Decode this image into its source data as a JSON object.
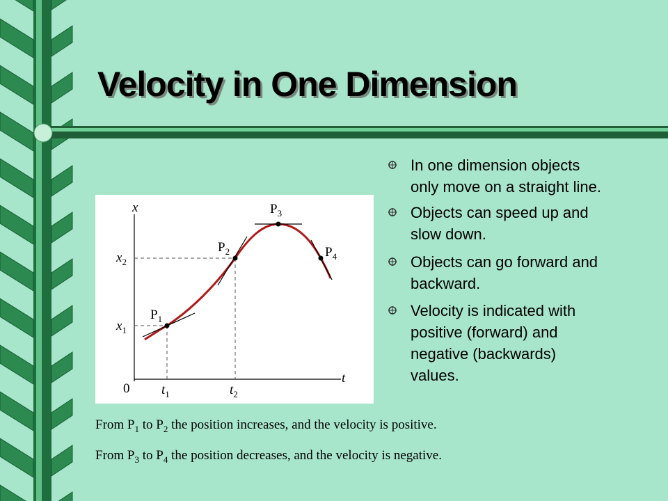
{
  "title": "Velocity in One Dimension",
  "bullets": [
    [
      "In one dimension objects",
      "only move on a straight line."
    ],
    [
      "Objects can speed up and",
      "slow down."
    ],
    [
      "Objects can go forward and",
      "backward."
    ],
    [
      "Velocity is indicated with",
      "positive (forward) and",
      "negative (backwards)",
      "values."
    ]
  ],
  "figure": {
    "x_axis": "t",
    "y_axis": "x",
    "origin": "0",
    "labels": {
      "x1": {
        "main": "x",
        "sub": "1"
      },
      "x2": {
        "main": "x",
        "sub": "2"
      },
      "t1": {
        "main": "t",
        "sub": "1"
      },
      "t2": {
        "main": "t",
        "sub": "2"
      },
      "P1": {
        "main": "P",
        "sub": "1"
      },
      "P2": {
        "main": "P",
        "sub": "2"
      },
      "P3": {
        "main": "P",
        "sub": "3"
      },
      "P4": {
        "main": "P",
        "sub": "4"
      }
    }
  },
  "captions": [
    [
      "From P",
      "1",
      " to P",
      "2",
      " the position increases, and the velocity is positive."
    ],
    [
      "From P",
      "3",
      " to P",
      "4",
      " the position decreases, and the velocity is negative."
    ]
  ]
}
